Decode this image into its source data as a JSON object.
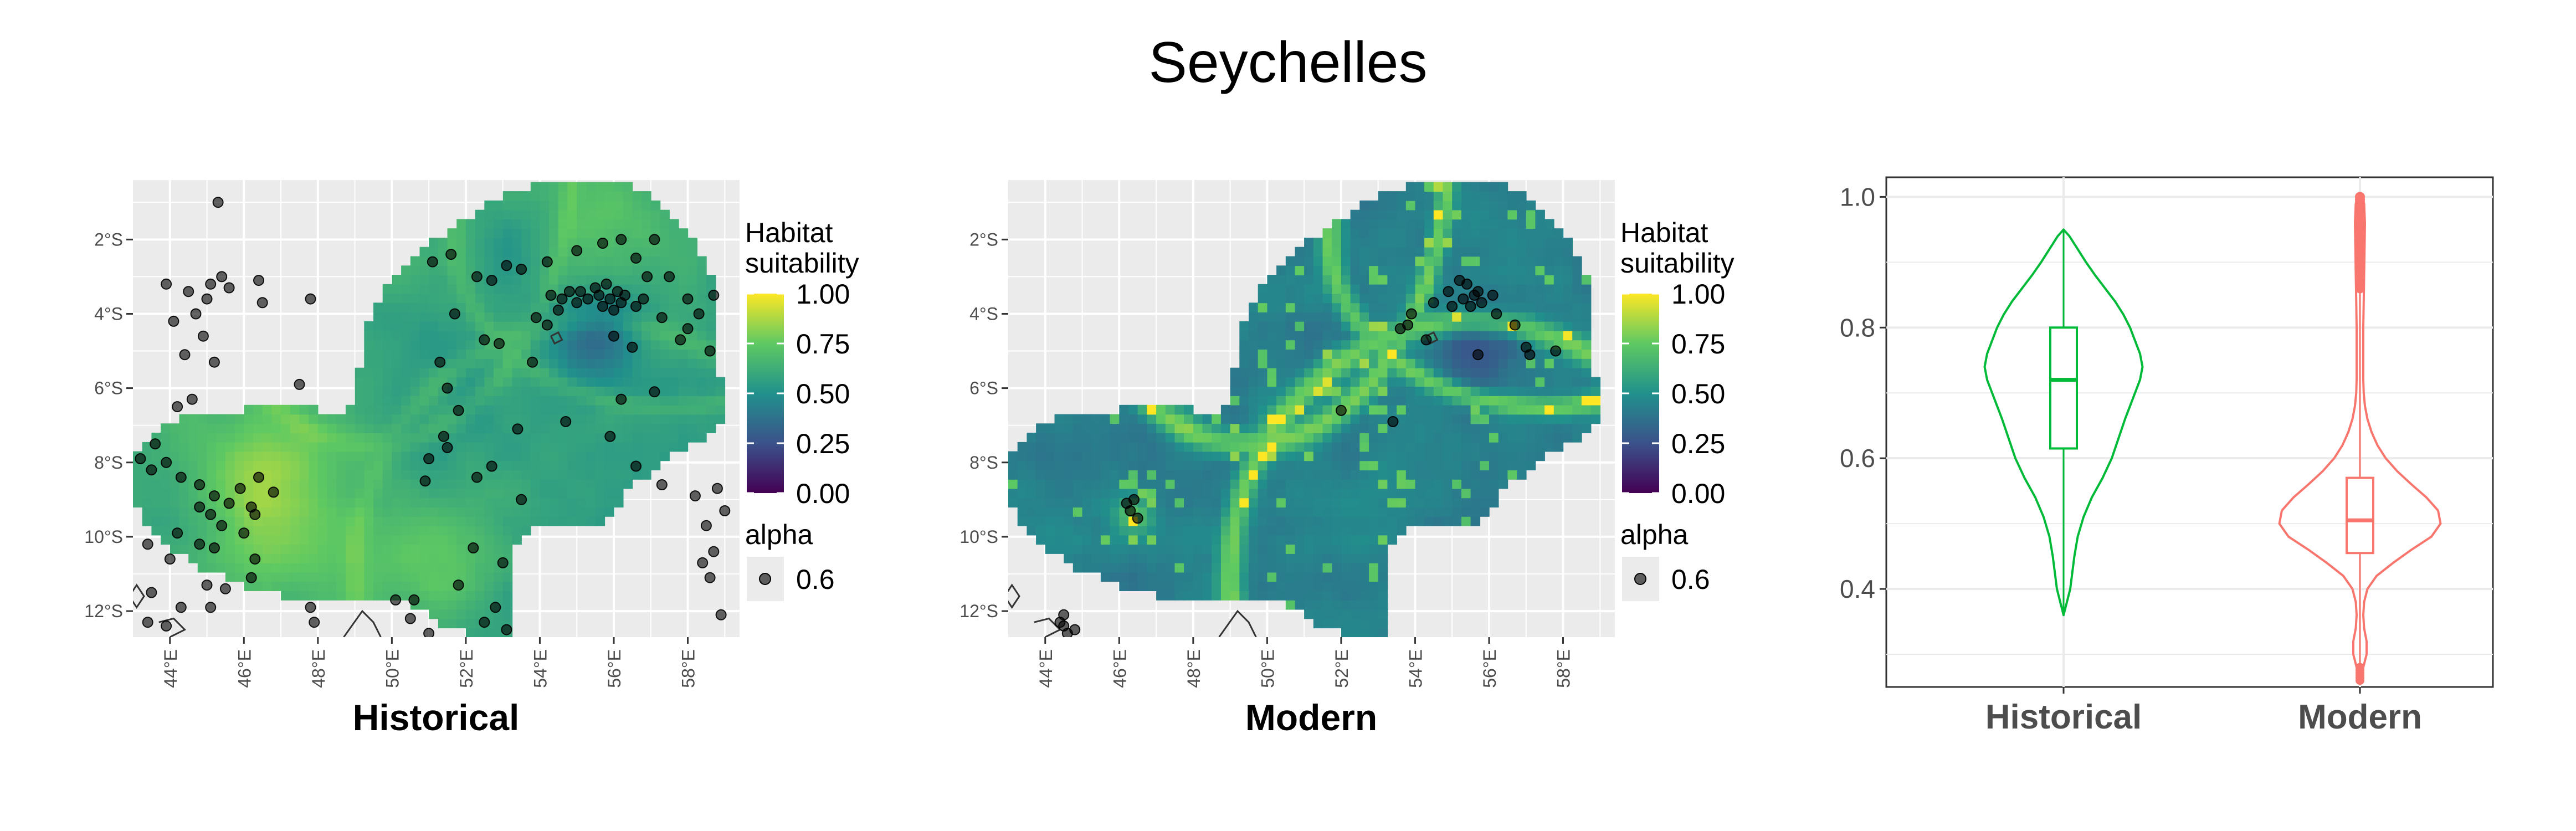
{
  "figure_title": "Seychelles",
  "colors": {
    "panel_bg": "#ebebeb",
    "grid": "#ffffff",
    "point": "#000000",
    "historical": "#00ba38",
    "modern": "#f8766d",
    "axis_text": "#4d4d4d",
    "viridis": [
      "#440154",
      "#3b528b",
      "#21918c",
      "#5ec962",
      "#fde725"
    ]
  },
  "chart_data": [
    {
      "type": "heatmap",
      "title": "Historical",
      "x_ticks": [
        "44°E",
        "46°E",
        "48°E",
        "50°E",
        "52°E",
        "54°E",
        "56°E",
        "58°E"
      ],
      "y_ticks": [
        "2°S",
        "4°S",
        "6°S",
        "8°S",
        "10°S",
        "12°S"
      ],
      "xlim": [
        43.0,
        59.4
      ],
      "ylim": [
        -12.7,
        -0.4
      ],
      "legend": {
        "title_line1": "Habitat",
        "title_line2": "suitability",
        "ticks": [
          "1.00",
          "0.75",
          "0.50",
          "0.25",
          "0.00"
        ],
        "alpha_title": "alpha",
        "alpha_value": "0.6",
        "placement": "right"
      },
      "points": [
        [
          45.3,
          -1.0
        ],
        [
          42.7,
          -1.6
        ],
        [
          43.9,
          -3.2
        ],
        [
          44.5,
          -3.4
        ],
        [
          45.1,
          -3.2
        ],
        [
          45.0,
          -3.6
        ],
        [
          45.4,
          -3.0
        ],
        [
          45.6,
          -3.3
        ],
        [
          46.4,
          -3.1
        ],
        [
          46.5,
          -3.7
        ],
        [
          47.8,
          -3.6
        ],
        [
          44.7,
          -4.0
        ],
        [
          44.1,
          -4.2
        ],
        [
          44.9,
          -4.6
        ],
        [
          44.4,
          -5.1
        ],
        [
          45.2,
          -5.3
        ],
        [
          47.5,
          -5.9
        ],
        [
          44.6,
          -6.3
        ],
        [
          44.2,
          -6.5
        ],
        [
          43.6,
          -7.5
        ],
        [
          43.2,
          -7.9
        ],
        [
          43.5,
          -8.2
        ],
        [
          43.9,
          -8.0
        ],
        [
          44.3,
          -8.4
        ],
        [
          44.8,
          -8.6
        ],
        [
          45.2,
          -8.9
        ],
        [
          45.9,
          -8.7
        ],
        [
          46.4,
          -8.4
        ],
        [
          46.8,
          -8.8
        ],
        [
          45.6,
          -9.1
        ],
        [
          44.8,
          -9.2
        ],
        [
          45.1,
          -9.4
        ],
        [
          46.2,
          -9.2
        ],
        [
          46.3,
          -9.4
        ],
        [
          45.4,
          -9.7
        ],
        [
          46.0,
          -9.9
        ],
        [
          44.2,
          -9.9
        ],
        [
          44.8,
          -10.2
        ],
        [
          45.2,
          -10.3
        ],
        [
          43.4,
          -10.2
        ],
        [
          44.0,
          -10.6
        ],
        [
          46.3,
          -10.6
        ],
        [
          46.2,
          -11.1
        ],
        [
          45.0,
          -11.3
        ],
        [
          45.5,
          -11.4
        ],
        [
          43.5,
          -11.5
        ],
        [
          44.3,
          -11.9
        ],
        [
          45.1,
          -11.9
        ],
        [
          47.8,
          -11.9
        ],
        [
          47.9,
          -12.3
        ],
        [
          43.4,
          -12.3
        ],
        [
          43.9,
          -12.4
        ],
        [
          50.1,
          -11.7
        ],
        [
          50.5,
          -12.2
        ],
        [
          51.0,
          -12.6
        ],
        [
          52.5,
          -12.3
        ],
        [
          53.1,
          -12.5
        ],
        [
          52.8,
          -11.9
        ],
        [
          53.0,
          -10.7
        ],
        [
          52.2,
          -10.3
        ],
        [
          53.5,
          -9.0
        ],
        [
          52.3,
          -8.4
        ],
        [
          52.7,
          -8.1
        ],
        [
          51.5,
          -7.6
        ],
        [
          51.0,
          -7.9
        ],
        [
          53.4,
          -7.1
        ],
        [
          51.1,
          -2.6
        ],
        [
          51.6,
          -2.4
        ],
        [
          52.3,
          -3.0
        ],
        [
          52.7,
          -3.1
        ],
        [
          53.1,
          -2.7
        ],
        [
          53.5,
          -2.8
        ],
        [
          54.2,
          -2.6
        ],
        [
          55.0,
          -2.3
        ],
        [
          55.7,
          -2.1
        ],
        [
          56.2,
          -2.0
        ],
        [
          57.1,
          -2.0
        ],
        [
          56.6,
          -2.5
        ],
        [
          56.9,
          -3.0
        ],
        [
          57.5,
          -3.0
        ],
        [
          58.0,
          -3.6
        ],
        [
          58.7,
          -3.5
        ],
        [
          58.3,
          -4.0
        ],
        [
          58.0,
          -4.4
        ],
        [
          57.3,
          -4.1
        ],
        [
          56.8,
          -3.6
        ],
        [
          56.6,
          -3.8
        ],
        [
          56.3,
          -3.5
        ],
        [
          56.1,
          -3.4
        ],
        [
          55.9,
          -3.6
        ],
        [
          55.8,
          -3.2
        ],
        [
          55.6,
          -3.5
        ],
        [
          55.5,
          -3.3
        ],
        [
          55.3,
          -3.6
        ],
        [
          55.1,
          -3.4
        ],
        [
          55.0,
          -3.7
        ],
        [
          54.8,
          -3.4
        ],
        [
          54.6,
          -3.6
        ],
        [
          54.5,
          -3.9
        ],
        [
          54.3,
          -3.5
        ],
        [
          56.0,
          -3.9
        ],
        [
          55.7,
          -3.8
        ],
        [
          56.2,
          -3.7
        ],
        [
          56.0,
          -4.6
        ],
        [
          56.5,
          -4.9
        ],
        [
          57.8,
          -4.7
        ],
        [
          58.6,
          -5.0
        ],
        [
          53.9,
          -4.1
        ],
        [
          54.2,
          -4.3
        ],
        [
          52.9,
          -4.8
        ],
        [
          52.5,
          -4.7
        ],
        [
          51.7,
          -4.0
        ],
        [
          51.3,
          -5.3
        ],
        [
          51.5,
          -6.0
        ],
        [
          51.8,
          -6.6
        ],
        [
          51.4,
          -7.3
        ],
        [
          54.7,
          -6.9
        ],
        [
          55.9,
          -7.3
        ],
        [
          56.6,
          -8.1
        ],
        [
          57.3,
          -8.6
        ],
        [
          58.2,
          -8.9
        ],
        [
          58.8,
          -8.7
        ],
        [
          59.0,
          -9.3
        ],
        [
          58.5,
          -9.7
        ],
        [
          58.7,
          -10.4
        ],
        [
          58.4,
          -10.7
        ],
        [
          58.6,
          -11.1
        ],
        [
          58.9,
          -12.1
        ],
        [
          57.1,
          -6.1
        ],
        [
          56.2,
          -6.3
        ],
        [
          53.8,
          -5.3
        ],
        [
          50.9,
          -8.5
        ],
        [
          50.6,
          -11.7
        ],
        [
          51.8,
          -11.3
        ]
      ]
    },
    {
      "type": "heatmap",
      "title": "Modern",
      "x_ticks": [
        "44°E",
        "46°E",
        "48°E",
        "50°E",
        "52°E",
        "54°E",
        "56°E",
        "58°E"
      ],
      "y_ticks": [
        "2°S",
        "4°S",
        "6°S",
        "8°S",
        "10°S",
        "12°S"
      ],
      "xlim": [
        43.0,
        59.4
      ],
      "ylim": [
        -12.7,
        -0.4
      ],
      "legend": {
        "title_line1": "Habitat",
        "title_line2": "suitability",
        "ticks": [
          "1.00",
          "0.75",
          "0.50",
          "0.25",
          "0.00"
        ],
        "alpha_title": "alpha",
        "alpha_value": "0.6",
        "placement": "right"
      },
      "points": [
        [
          55.2,
          -3.1
        ],
        [
          55.4,
          -3.2
        ],
        [
          55.6,
          -3.5
        ],
        [
          55.3,
          -3.6
        ],
        [
          55.7,
          -3.4
        ],
        [
          55.0,
          -3.8
        ],
        [
          55.8,
          -3.7
        ],
        [
          56.1,
          -3.5
        ],
        [
          56.2,
          -4.0
        ],
        [
          54.5,
          -3.7
        ],
        [
          54.9,
          -3.4
        ],
        [
          55.5,
          -3.8
        ],
        [
          53.9,
          -4.0
        ],
        [
          53.8,
          -4.3
        ],
        [
          54.3,
          -4.7
        ],
        [
          53.6,
          -4.4
        ],
        [
          56.7,
          -4.3
        ],
        [
          57.0,
          -4.9
        ],
        [
          57.1,
          -5.1
        ],
        [
          57.8,
          -5.0
        ],
        [
          55.7,
          -5.1
        ],
        [
          52.0,
          -6.6
        ],
        [
          53.4,
          -6.9
        ],
        [
          46.2,
          -9.1
        ],
        [
          46.4,
          -9.0
        ],
        [
          46.5,
          -9.5
        ],
        [
          46.3,
          -9.3
        ],
        [
          44.4,
          -12.3
        ],
        [
          44.5,
          -12.4
        ],
        [
          44.6,
          -12.6
        ],
        [
          44.8,
          -12.5
        ],
        [
          44.5,
          -12.1
        ]
      ]
    },
    {
      "type": "violin",
      "categories": [
        "Historical",
        "Modern"
      ],
      "ylim": [
        0.25,
        1.03
      ],
      "y_ticks": [
        0.4,
        0.6,
        0.8,
        1.0
      ],
      "y_tick_labels": [
        "0.4",
        "0.6",
        "0.8",
        "1.0"
      ],
      "grid": true,
      "series": [
        {
          "category": "Historical",
          "min": 0.36,
          "q1": 0.615,
          "median": 0.72,
          "q3": 0.8,
          "max": 0.95,
          "density": [
            [
              0.36,
              0.0
            ],
            [
              0.38,
              0.04
            ],
            [
              0.4,
              0.08
            ],
            [
              0.42,
              0.1
            ],
            [
              0.45,
              0.13
            ],
            [
              0.48,
              0.17
            ],
            [
              0.51,
              0.24
            ],
            [
              0.54,
              0.34
            ],
            [
              0.57,
              0.47
            ],
            [
              0.6,
              0.58
            ],
            [
              0.63,
              0.66
            ],
            [
              0.66,
              0.74
            ],
            [
              0.69,
              0.83
            ],
            [
              0.72,
              0.92
            ],
            [
              0.74,
              0.95
            ],
            [
              0.76,
              0.92
            ],
            [
              0.78,
              0.86
            ],
            [
              0.8,
              0.8
            ],
            [
              0.82,
              0.72
            ],
            [
              0.84,
              0.62
            ],
            [
              0.86,
              0.5
            ],
            [
              0.88,
              0.38
            ],
            [
              0.9,
              0.27
            ],
            [
              0.92,
              0.17
            ],
            [
              0.94,
              0.07
            ],
            [
              0.95,
              0.0
            ]
          ]
        },
        {
          "category": "Modern",
          "min": 0.26,
          "q1": 0.455,
          "median": 0.505,
          "q3": 0.57,
          "max": 1.0,
          "density": [
            [
              0.26,
              0.0
            ],
            [
              0.28,
              0.04
            ],
            [
              0.3,
              0.08
            ],
            [
              0.32,
              0.08
            ],
            [
              0.34,
              0.05
            ],
            [
              0.36,
              0.04
            ],
            [
              0.38,
              0.05
            ],
            [
              0.4,
              0.09
            ],
            [
              0.42,
              0.2
            ],
            [
              0.44,
              0.4
            ],
            [
              0.46,
              0.62
            ],
            [
              0.48,
              0.86
            ],
            [
              0.5,
              0.97
            ],
            [
              0.52,
              0.94
            ],
            [
              0.54,
              0.8
            ],
            [
              0.56,
              0.62
            ],
            [
              0.58,
              0.45
            ],
            [
              0.6,
              0.31
            ],
            [
              0.62,
              0.21
            ],
            [
              0.64,
              0.14
            ],
            [
              0.66,
              0.09
            ],
            [
              0.68,
              0.06
            ],
            [
              0.7,
              0.045
            ],
            [
              0.72,
              0.04
            ],
            [
              0.74,
              0.04
            ],
            [
              0.76,
              0.04
            ],
            [
              0.8,
              0.04
            ],
            [
              0.84,
              0.045
            ],
            [
              0.88,
              0.05
            ],
            [
              0.92,
              0.055
            ],
            [
              0.96,
              0.06
            ],
            [
              0.99,
              0.05
            ],
            [
              1.0,
              0.0
            ]
          ],
          "outliers_from": 0.86,
          "outliers_to": 1.0
        }
      ]
    }
  ]
}
